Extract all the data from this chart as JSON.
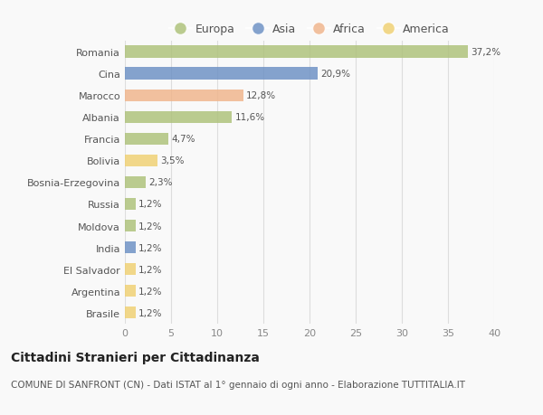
{
  "countries": [
    "Romania",
    "Cina",
    "Marocco",
    "Albania",
    "Francia",
    "Bolivia",
    "Bosnia-Erzegovina",
    "Russia",
    "Moldova",
    "India",
    "El Salvador",
    "Argentina",
    "Brasile"
  ],
  "values": [
    37.2,
    20.9,
    12.8,
    11.6,
    4.7,
    3.5,
    2.3,
    1.2,
    1.2,
    1.2,
    1.2,
    1.2,
    1.2
  ],
  "labels": [
    "37,2%",
    "20,9%",
    "12,8%",
    "11,6%",
    "4,7%",
    "3,5%",
    "2,3%",
    "1,2%",
    "1,2%",
    "1,2%",
    "1,2%",
    "1,2%",
    "1,2%"
  ],
  "colors": [
    "#adc178",
    "#6b8fc4",
    "#f0b48a",
    "#adc178",
    "#adc178",
    "#f0d070",
    "#adc178",
    "#adc178",
    "#adc178",
    "#6b8fc4",
    "#f0d070",
    "#f0d070",
    "#f0d070"
  ],
  "legend_labels": [
    "Europa",
    "Asia",
    "Africa",
    "America"
  ],
  "legend_colors": [
    "#adc178",
    "#6b8fc4",
    "#f0b48a",
    "#f0d070"
  ],
  "title": "Cittadini Stranieri per Cittadinanza",
  "subtitle": "COMUNE DI SANFRONT (CN) - Dati ISTAT al 1° gennaio di ogni anno - Elaborazione TUTTITALIA.IT",
  "xlim": [
    0,
    40
  ],
  "xticks": [
    0,
    5,
    10,
    15,
    20,
    25,
    30,
    35,
    40
  ],
  "background_color": "#f9f9f9",
  "grid_color": "#dddddd",
  "bar_alpha": 0.82,
  "bar_height": 0.55,
  "title_fontsize": 10,
  "subtitle_fontsize": 7.5,
  "label_fontsize": 7.5,
  "tick_fontsize": 8,
  "legend_fontsize": 9
}
